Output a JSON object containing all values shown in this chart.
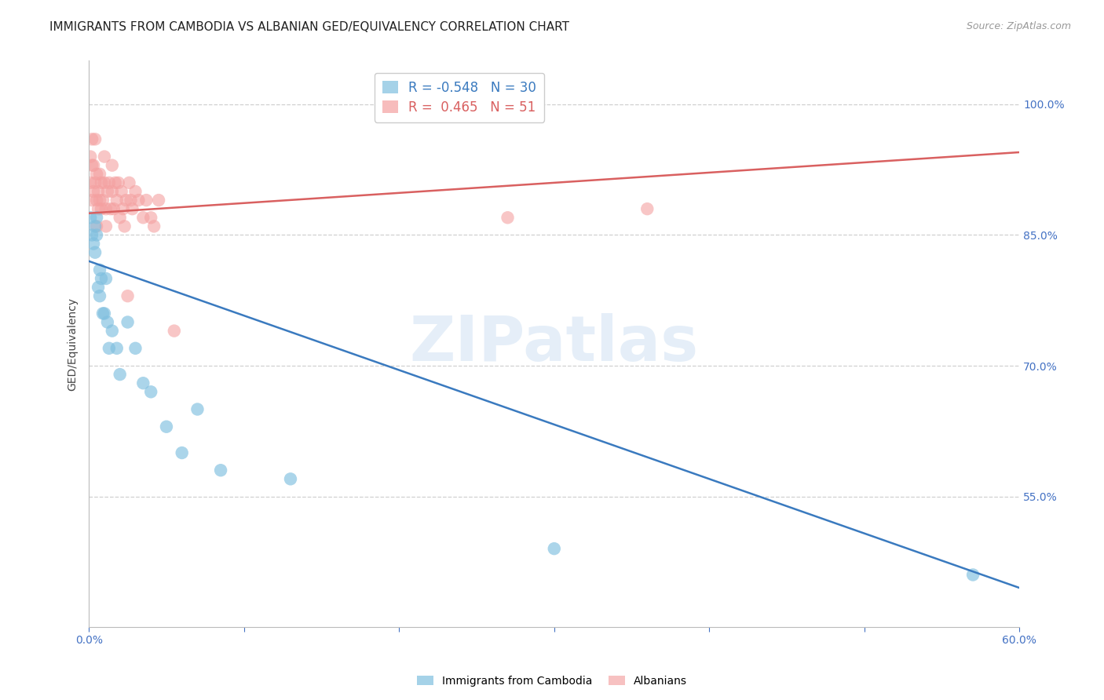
{
  "title": "IMMIGRANTS FROM CAMBODIA VS ALBANIAN GED/EQUIVALENCY CORRELATION CHART",
  "source": "Source: ZipAtlas.com",
  "ylabel": "GED/Equivalency",
  "xlabel_cambodia": "Immigrants from Cambodia",
  "xlabel_albanians": "Albanians",
  "watermark": "ZIPatlas",
  "r_cambodia": -0.548,
  "n_cambodia": 30,
  "r_albanian": 0.465,
  "n_albanian": 51,
  "cambodia_color": "#7fbfdf",
  "albanian_color": "#f4a0a0",
  "cambodia_line_color": "#3a7abf",
  "albanian_line_color": "#d96060",
  "cambodia_x": [
    0.001,
    0.002,
    0.003,
    0.004,
    0.004,
    0.005,
    0.005,
    0.006,
    0.007,
    0.007,
    0.008,
    0.009,
    0.01,
    0.011,
    0.012,
    0.013,
    0.015,
    0.018,
    0.02,
    0.025,
    0.03,
    0.035,
    0.04,
    0.05,
    0.06,
    0.07,
    0.085,
    0.13,
    0.3,
    0.57
  ],
  "cambodia_y": [
    0.87,
    0.85,
    0.84,
    0.86,
    0.83,
    0.87,
    0.85,
    0.79,
    0.81,
    0.78,
    0.8,
    0.76,
    0.76,
    0.8,
    0.75,
    0.72,
    0.74,
    0.72,
    0.69,
    0.75,
    0.72,
    0.68,
    0.67,
    0.63,
    0.6,
    0.65,
    0.58,
    0.57,
    0.49,
    0.46
  ],
  "albanian_x": [
    0.001,
    0.001,
    0.002,
    0.002,
    0.002,
    0.003,
    0.003,
    0.004,
    0.004,
    0.005,
    0.005,
    0.005,
    0.006,
    0.006,
    0.007,
    0.007,
    0.008,
    0.008,
    0.009,
    0.01,
    0.01,
    0.011,
    0.011,
    0.012,
    0.013,
    0.014,
    0.015,
    0.015,
    0.016,
    0.017,
    0.018,
    0.019,
    0.02,
    0.021,
    0.022,
    0.023,
    0.024,
    0.025,
    0.026,
    0.027,
    0.028,
    0.03,
    0.032,
    0.035,
    0.037,
    0.04,
    0.042,
    0.045,
    0.055,
    0.27,
    0.36
  ],
  "albanian_y": [
    0.94,
    0.91,
    0.96,
    0.93,
    0.89,
    0.9,
    0.93,
    0.96,
    0.91,
    0.92,
    0.89,
    0.86,
    0.9,
    0.88,
    0.92,
    0.89,
    0.91,
    0.88,
    0.89,
    0.94,
    0.91,
    0.88,
    0.86,
    0.9,
    0.91,
    0.88,
    0.93,
    0.9,
    0.88,
    0.91,
    0.89,
    0.91,
    0.87,
    0.9,
    0.88,
    0.86,
    0.89,
    0.78,
    0.91,
    0.89,
    0.88,
    0.9,
    0.89,
    0.87,
    0.89,
    0.87,
    0.86,
    0.89,
    0.74,
    0.87,
    0.88
  ],
  "cam_trendline_x": [
    0.0,
    0.6
  ],
  "cam_trendline_y": [
    0.82,
    0.445
  ],
  "alb_trendline_x": [
    0.0,
    0.6
  ],
  "alb_trendline_y": [
    0.875,
    0.945
  ],
  "xlim": [
    0.0,
    0.6
  ],
  "ylim": [
    0.4,
    1.05
  ],
  "xaxis_ticks": [
    0.0,
    0.1,
    0.2,
    0.3,
    0.4,
    0.5,
    0.6
  ],
  "xaxis_labels": [
    "0.0%",
    "",
    "",
    "",
    "",
    "",
    "60.0%"
  ],
  "yaxis_ticks": [
    0.55,
    0.7,
    0.85,
    1.0
  ],
  "yaxis_labels": [
    "55.0%",
    "70.0%",
    "85.0%",
    "100.0%"
  ],
  "bg_color": "#ffffff",
  "grid_color": "#d0d0d0",
  "axis_label_color": "#4472c4",
  "title_color": "#222222",
  "title_fontsize": 11,
  "axis_fontsize": 10,
  "legend_fontsize": 11
}
